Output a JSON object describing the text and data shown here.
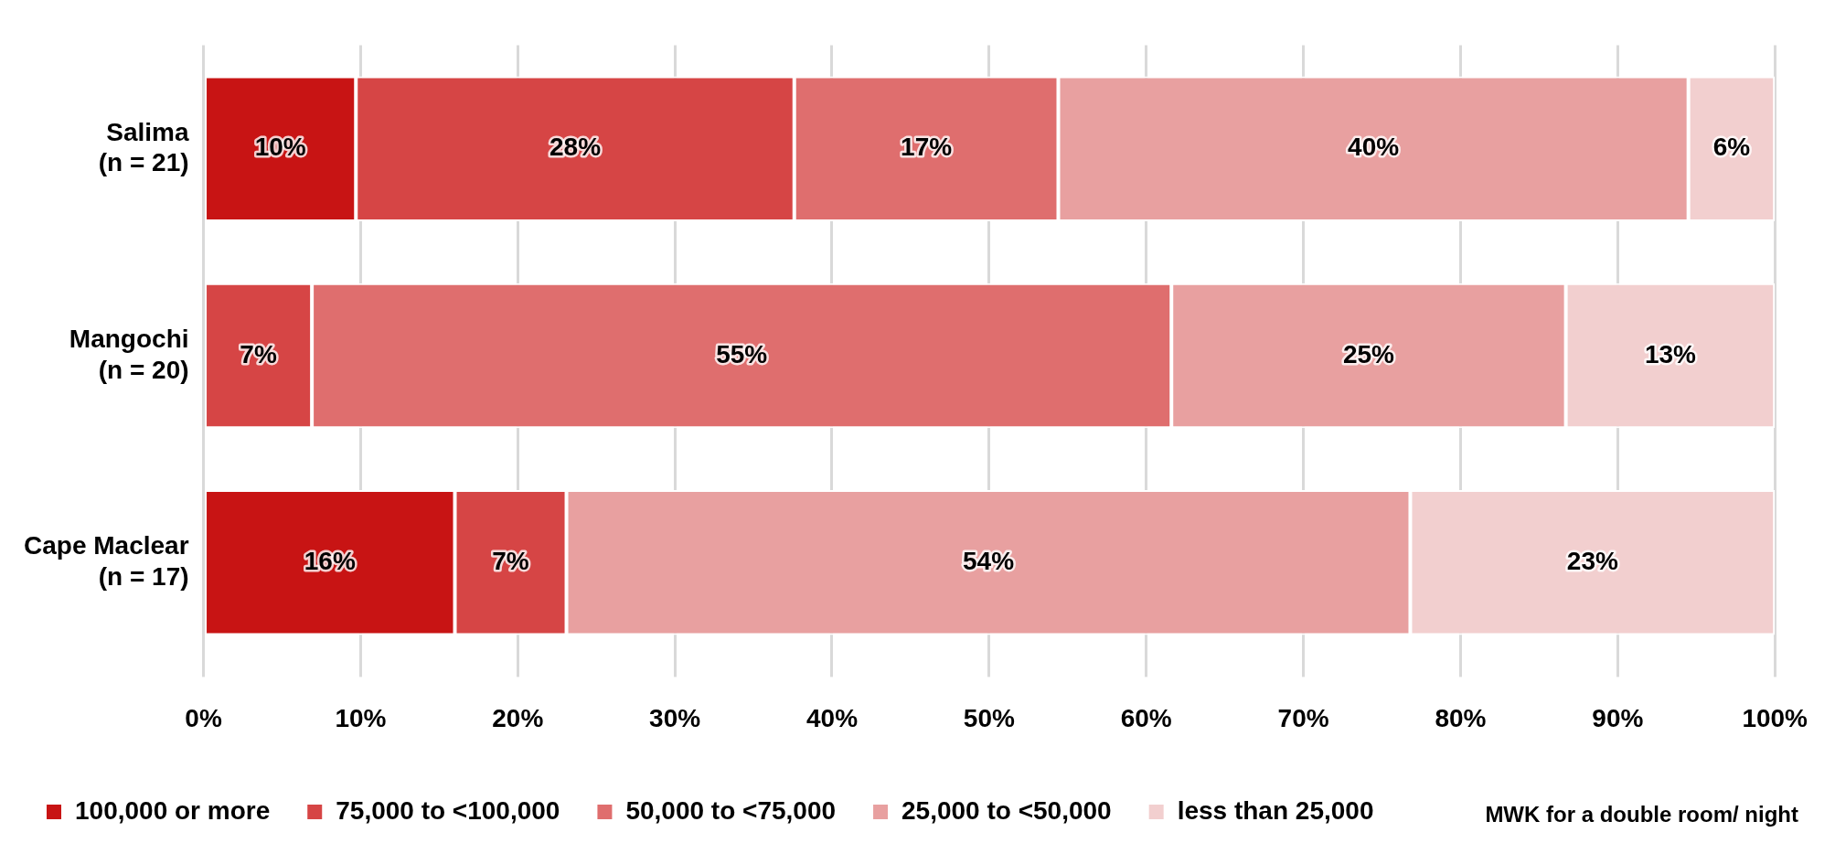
{
  "chart_data": {
    "type": "bar",
    "orientation": "horizontal",
    "stacked": true,
    "categories": [
      "Salima\n(n = 21)",
      "Mangochi\n(n = 20)",
      "Cape Maclear\n(n = 17)"
    ],
    "series": [
      {
        "name": "100,000 or more",
        "color": "#c81414",
        "values": [
          9.7,
          null,
          16
        ],
        "value_labels": [
          "10%",
          null,
          "16%"
        ]
      },
      {
        "name": "75,000 to <100,000",
        "color": "#d64545",
        "values": [
          27.9,
          6.9,
          7.1
        ],
        "value_labels": [
          "28%",
          "7%",
          "7%"
        ]
      },
      {
        "name": "50,000 to <75,000",
        "color": "#df6e6e",
        "values": [
          16.8,
          54.7,
          null
        ],
        "value_labels": [
          "17%",
          "55%",
          null
        ]
      },
      {
        "name": "25,000 to <50,000",
        "color": "#e8a0a0",
        "values": [
          40.1,
          25.1,
          53.7
        ],
        "value_labels": [
          "40%",
          "25%",
          "54%"
        ]
      },
      {
        "name": "less than 25,000",
        "color": "#f2cfcf",
        "values": [
          5.5,
          13.3,
          23.2
        ],
        "value_labels": [
          "6%",
          "13%",
          "23%"
        ]
      }
    ],
    "xlim": [
      0,
      100
    ],
    "xticks": [
      {
        "value": 0,
        "label": "0%"
      },
      {
        "value": 10,
        "label": "10%"
      },
      {
        "value": 20,
        "label": "20%"
      },
      {
        "value": 30,
        "label": "30%"
      },
      {
        "value": 40,
        "label": "40%"
      },
      {
        "value": 50,
        "label": "50%"
      },
      {
        "value": 60,
        "label": "60%"
      },
      {
        "value": 70,
        "label": "70%"
      },
      {
        "value": 80,
        "label": "80%"
      },
      {
        "value": 90,
        "label": "90%"
      },
      {
        "value": 100,
        "label": "100%"
      }
    ],
    "grid": "x",
    "legend": "bottom",
    "annotations": [
      "MWK for a double room/ night"
    ]
  }
}
